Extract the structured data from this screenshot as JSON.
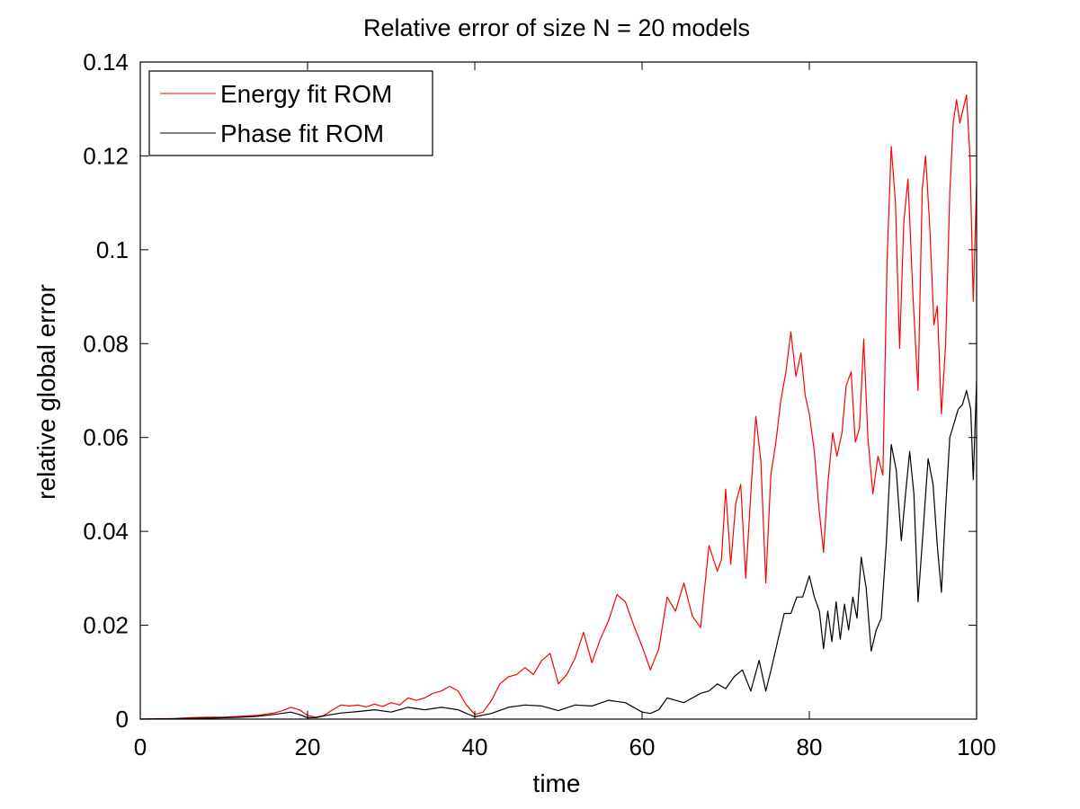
{
  "chart_data": {
    "type": "line",
    "title": "Relative error of size N = 20 models",
    "xlabel": "time",
    "ylabel": "relative global error",
    "xlim": [
      0,
      100
    ],
    "ylim": [
      0,
      0.14
    ],
    "xticks": [
      "0",
      "20",
      "40",
      "60",
      "80",
      "100"
    ],
    "yticks": [
      "0",
      "0.02",
      "0.04",
      "0.06",
      "0.08",
      "0.1",
      "0.12",
      "0.14"
    ],
    "grid": false,
    "legend_position": "top-left",
    "series": [
      {
        "name": "Energy fit ROM",
        "color": "#ff0000",
        "points": [
          [
            0,
            0.0
          ],
          [
            2,
            0.0001
          ],
          [
            4,
            0.0001
          ],
          [
            6,
            0.0003
          ],
          [
            8,
            0.0004
          ],
          [
            10,
            0.0004
          ],
          [
            12,
            0.0006
          ],
          [
            14,
            0.0008
          ],
          [
            16,
            0.0013
          ],
          [
            17,
            0.0018
          ],
          [
            18,
            0.0025
          ],
          [
            19,
            0.002
          ],
          [
            20,
            0.0008
          ],
          [
            21,
            0.0004
          ],
          [
            22,
            0.0008
          ],
          [
            23,
            0.002
          ],
          [
            24,
            0.003
          ],
          [
            25,
            0.0028
          ],
          [
            26,
            0.003
          ],
          [
            27,
            0.0026
          ],
          [
            28,
            0.0032
          ],
          [
            29,
            0.0027
          ],
          [
            30,
            0.0035
          ],
          [
            31,
            0.003
          ],
          [
            32,
            0.0045
          ],
          [
            33,
            0.004
          ],
          [
            34,
            0.0045
          ],
          [
            35,
            0.0055
          ],
          [
            36,
            0.006
          ],
          [
            37,
            0.007
          ],
          [
            38,
            0.006
          ],
          [
            39,
            0.003
          ],
          [
            40,
            0.001
          ],
          [
            41,
            0.0015
          ],
          [
            42,
            0.004
          ],
          [
            43,
            0.0075
          ],
          [
            44,
            0.009
          ],
          [
            45,
            0.0095
          ],
          [
            46,
            0.011
          ],
          [
            47,
            0.0095
          ],
          [
            48,
            0.0125
          ],
          [
            49,
            0.014
          ],
          [
            50,
            0.0075
          ],
          [
            51,
            0.0095
          ],
          [
            52,
            0.013
          ],
          [
            53,
            0.0185
          ],
          [
            54,
            0.012
          ],
          [
            55,
            0.017
          ],
          [
            56,
            0.021
          ],
          [
            57,
            0.0265
          ],
          [
            58,
            0.025
          ],
          [
            59,
            0.02
          ],
          [
            60,
            0.0155
          ],
          [
            61,
            0.0105
          ],
          [
            62,
            0.015
          ],
          [
            63,
            0.026
          ],
          [
            64,
            0.023
          ],
          [
            65,
            0.029
          ],
          [
            66,
            0.022
          ],
          [
            67,
            0.0195
          ],
          [
            68,
            0.037
          ],
          [
            69,
            0.0315
          ],
          [
            69.5,
            0.034
          ],
          [
            70,
            0.049
          ],
          [
            70.6,
            0.033
          ],
          [
            71.2,
            0.046
          ],
          [
            71.8,
            0.05
          ],
          [
            72.4,
            0.03
          ],
          [
            73,
            0.048
          ],
          [
            73.6,
            0.0645
          ],
          [
            74.2,
            0.055
          ],
          [
            74.8,
            0.029
          ],
          [
            75.4,
            0.052
          ],
          [
            76,
            0.059
          ],
          [
            76.6,
            0.068
          ],
          [
            77.2,
            0.074
          ],
          [
            77.8,
            0.0825
          ],
          [
            78.4,
            0.073
          ],
          [
            79,
            0.078
          ],
          [
            79.5,
            0.069
          ],
          [
            80,
            0.065
          ],
          [
            80.6,
            0.057
          ],
          [
            81.1,
            0.046
          ],
          [
            81.7,
            0.0355
          ],
          [
            82.2,
            0.05
          ],
          [
            82.8,
            0.061
          ],
          [
            83.3,
            0.056
          ],
          [
            83.9,
            0.061
          ],
          [
            84.4,
            0.071
          ],
          [
            85,
            0.074
          ],
          [
            85.5,
            0.059
          ],
          [
            86,
            0.062
          ],
          [
            86.5,
            0.081
          ],
          [
            87,
            0.06
          ],
          [
            87.6,
            0.048
          ],
          [
            88.2,
            0.056
          ],
          [
            88.8,
            0.052
          ],
          [
            89.3,
            0.098
          ],
          [
            89.8,
            0.122
          ],
          [
            90.3,
            0.11
          ],
          [
            90.8,
            0.079
          ],
          [
            91.3,
            0.106
          ],
          [
            91.8,
            0.115
          ],
          [
            92.4,
            0.09
          ],
          [
            93,
            0.07
          ],
          [
            93.5,
            0.113
          ],
          [
            93.9,
            0.12
          ],
          [
            94.4,
            0.105
          ],
          [
            94.9,
            0.084
          ],
          [
            95.3,
            0.088
          ],
          [
            95.8,
            0.065
          ],
          [
            96.3,
            0.08
          ],
          [
            96.8,
            0.112
          ],
          [
            97.2,
            0.127
          ],
          [
            97.6,
            0.132
          ],
          [
            98,
            0.127
          ],
          [
            98.4,
            0.13
          ],
          [
            98.8,
            0.133
          ],
          [
            99.2,
            0.12
          ],
          [
            99.6,
            0.089
          ],
          [
            100,
            0.114
          ]
        ]
      },
      {
        "name": "Phase fit ROM",
        "color": "#000000",
        "points": [
          [
            0,
            0.0
          ],
          [
            4,
            0.0001
          ],
          [
            8,
            0.0002
          ],
          [
            12,
            0.0004
          ],
          [
            14,
            0.0006
          ],
          [
            16,
            0.001
          ],
          [
            18,
            0.0015
          ],
          [
            19,
            0.001
          ],
          [
            20,
            0.0003
          ],
          [
            21,
            0.0003
          ],
          [
            22,
            0.0007
          ],
          [
            24,
            0.0013
          ],
          [
            26,
            0.0016
          ],
          [
            28,
            0.002
          ],
          [
            30,
            0.0015
          ],
          [
            32,
            0.0025
          ],
          [
            34,
            0.002
          ],
          [
            36,
            0.0025
          ],
          [
            38,
            0.002
          ],
          [
            39,
            0.0012
          ],
          [
            40,
            0.0005
          ],
          [
            42,
            0.0012
          ],
          [
            44,
            0.0025
          ],
          [
            46,
            0.003
          ],
          [
            48,
            0.0028
          ],
          [
            50,
            0.0018
          ],
          [
            52,
            0.003
          ],
          [
            54,
            0.0028
          ],
          [
            56,
            0.004
          ],
          [
            58,
            0.0035
          ],
          [
            60,
            0.0015
          ],
          [
            61,
            0.0012
          ],
          [
            62,
            0.002
          ],
          [
            63,
            0.0045
          ],
          [
            64,
            0.004
          ],
          [
            65,
            0.0035
          ],
          [
            66,
            0.0045
          ],
          [
            67,
            0.0055
          ],
          [
            68,
            0.006
          ],
          [
            69,
            0.0075
          ],
          [
            70,
            0.0065
          ],
          [
            71,
            0.009
          ],
          [
            72,
            0.0105
          ],
          [
            73,
            0.006
          ],
          [
            74,
            0.0125
          ],
          [
            74.8,
            0.006
          ],
          [
            75.5,
            0.011
          ],
          [
            76.2,
            0.0165
          ],
          [
            77,
            0.0225
          ],
          [
            77.8,
            0.0225
          ],
          [
            78.5,
            0.026
          ],
          [
            79.2,
            0.026
          ],
          [
            80,
            0.0305
          ],
          [
            80.6,
            0.026
          ],
          [
            81.2,
            0.023
          ],
          [
            81.7,
            0.015
          ],
          [
            82.2,
            0.023
          ],
          [
            82.7,
            0.0165
          ],
          [
            83.2,
            0.025
          ],
          [
            83.7,
            0.017
          ],
          [
            84.2,
            0.0245
          ],
          [
            84.7,
            0.019
          ],
          [
            85.2,
            0.026
          ],
          [
            85.7,
            0.0215
          ],
          [
            86.2,
            0.0345
          ],
          [
            86.8,
            0.028
          ],
          [
            87.4,
            0.0145
          ],
          [
            88,
            0.019
          ],
          [
            88.6,
            0.0215
          ],
          [
            89.2,
            0.0375
          ],
          [
            89.8,
            0.0585
          ],
          [
            90.4,
            0.053
          ],
          [
            91,
            0.038
          ],
          [
            91.5,
            0.048
          ],
          [
            92,
            0.057
          ],
          [
            92.5,
            0.048
          ],
          [
            93,
            0.025
          ],
          [
            93.6,
            0.04
          ],
          [
            94.2,
            0.0555
          ],
          [
            94.8,
            0.05
          ],
          [
            95.3,
            0.037
          ],
          [
            95.8,
            0.027
          ],
          [
            96.3,
            0.045
          ],
          [
            96.8,
            0.06
          ],
          [
            97.3,
            0.063
          ],
          [
            97.8,
            0.066
          ],
          [
            98.3,
            0.067
          ],
          [
            98.8,
            0.07
          ],
          [
            99.3,
            0.066
          ],
          [
            99.6,
            0.051
          ],
          [
            100,
            0.072
          ]
        ]
      }
    ]
  }
}
